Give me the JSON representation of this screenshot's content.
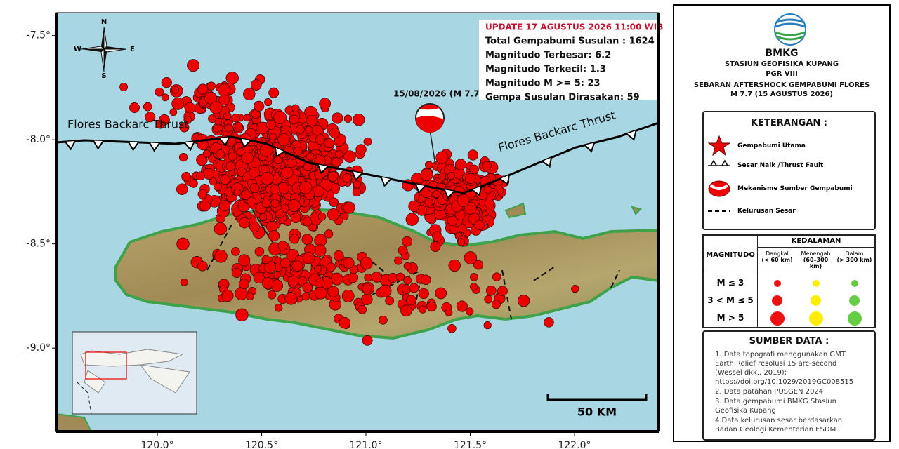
{
  "map": {
    "lat_range": [
      -7.39,
      -9.4
    ],
    "lon_range": [
      119.515,
      122.404
    ],
    "lat_ticks": [
      {
        "value": -7.5,
        "label": "-7.5°"
      },
      {
        "value": -8.0,
        "label": "-8.0°"
      },
      {
        "value": -8.5,
        "label": "-8.5°"
      },
      {
        "value": -9.0,
        "label": "-9.0°"
      }
    ],
    "lon_ticks": [
      {
        "value": 120.0,
        "label": "120.0°"
      },
      {
        "value": 120.5,
        "label": "120.5°"
      },
      {
        "value": 121.0,
        "label": "121.0°"
      },
      {
        "value": 121.5,
        "label": "121.5°"
      },
      {
        "value": 122.0,
        "label": "122.0°"
      }
    ],
    "compass": {
      "n": "N",
      "s": "S",
      "e": "E",
      "w": "W"
    },
    "fault_labels": [
      "Flores Backarc Thrust",
      "Flores Backarc Thrust"
    ],
    "mainshock_label": "15/08/2026 (M 7.7)",
    "scale_label": "50 KM"
  },
  "info": {
    "update": "UPDATE 17 AGUSTUS 2026 11:00 WIB",
    "lines": [
      "Total Gempabumi Susulan : 1624",
      "Magnitudo Terbesar: 6.2",
      "Magnitudo Terkecil: 1.3",
      "Magnitudo M >= 5: 23",
      "Gempa Susulan Dirasakan: 59"
    ]
  },
  "panel": {
    "agency": "BMKG",
    "station": "STASIUN GEOFISIKA KUPANG",
    "region": "PGR VIII",
    "title_lines": [
      "SEBARAN AFTERSHOCK GEMPABUMI FLORES",
      "M 7.7 (15 AGUSTUS 2026)"
    ],
    "legend": {
      "title": "KETERANGAN :",
      "items": [
        "Gempabumi Utama",
        "Sesar Naik /Thrust Fault",
        "Mekanisme Sumber Gempabumi",
        "Kelurusan Sesar"
      ]
    },
    "depth_table": {
      "magnitude_header": "MAGNITUDO",
      "depth_header": "KEDALAMAN",
      "depth_classes": [
        {
          "name": "Dangkal",
          "range": "(< 60 km)"
        },
        {
          "name": "Menengah",
          "range": "(60–300 km)"
        },
        {
          "name": "Dalam",
          "range": "(> 300 km)"
        }
      ],
      "magnitude_classes": [
        "M ≤ 3",
        "3 < M ≤ 5",
        "M > 5"
      ]
    },
    "sources": {
      "title": "SUMBER DATA :",
      "items": [
        "1. Data topografi menggunakan GMT Earth Relief resolusi 15 arc-second (Wessel dkk., 2019); https://doi.org/10.1029/2019GC008515",
        "2. Data patahan PUSGEN 2024",
        "3. Data gempabumi BMKG Stasiun Geofisika Kupang",
        "4.Data kelurusan sesar berdasarkan Badan Geologi Kementerian ESDM"
      ]
    }
  }
}
